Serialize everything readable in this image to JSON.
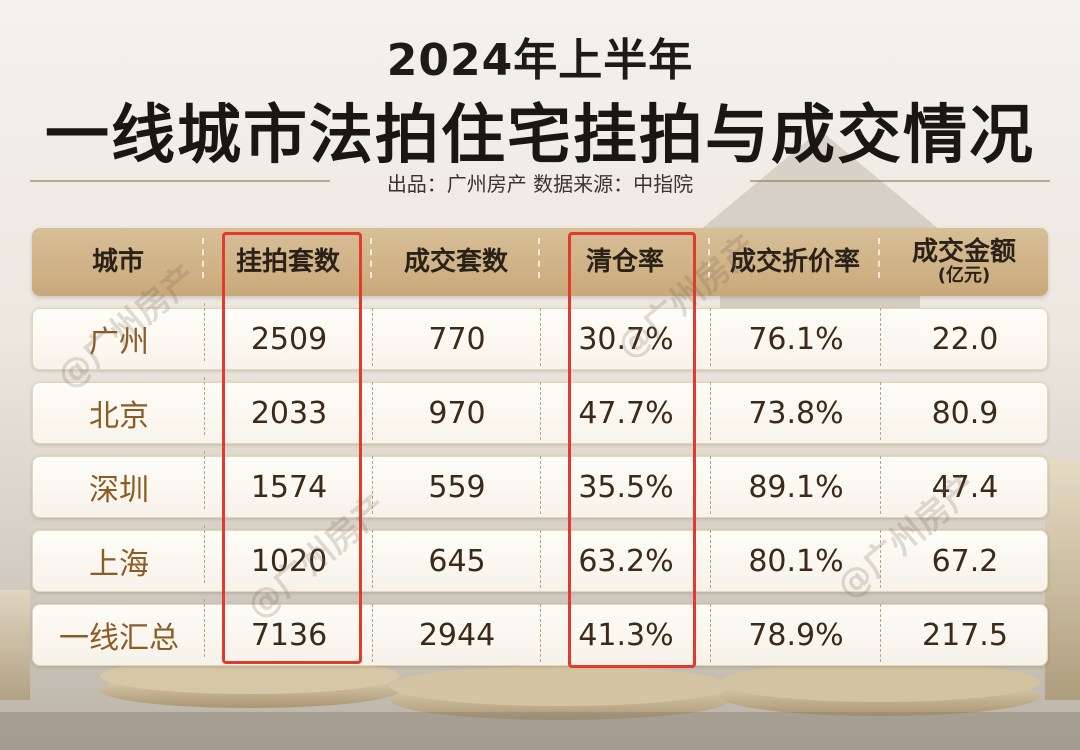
{
  "header": {
    "subtitle": "2024年上半年",
    "title": "一线城市法拍住宅挂拍与成交情况",
    "source": "出品：广州房产  数据来源：中指院"
  },
  "table": {
    "columns": [
      "城市",
      "挂拍套数",
      "成交套数",
      "清仓率",
      "成交折价率",
      "成交金额"
    ],
    "amount_unit": "(亿元)",
    "rows": [
      {
        "city": "广州",
        "listed": "2509",
        "sold": "770",
        "clearance": "30.7%",
        "discount": "76.1%",
        "amount": "22.0"
      },
      {
        "city": "北京",
        "listed": "2033",
        "sold": "970",
        "clearance": "47.7%",
        "discount": "73.8%",
        "amount": "80.9"
      },
      {
        "city": "深圳",
        "listed": "1574",
        "sold": "559",
        "clearance": "35.5%",
        "discount": "89.1%",
        "amount": "47.4"
      },
      {
        "city": "上海",
        "listed": "1020",
        "sold": "645",
        "clearance": "63.2%",
        "discount": "80.1%",
        "amount": "67.2"
      },
      {
        "city": "一线汇总",
        "listed": "7136",
        "sold": "2944",
        "clearance": "41.3%",
        "discount": "78.9%",
        "amount": "217.5"
      }
    ]
  },
  "watermark": "@广州房产",
  "colors": {
    "header_bg": "#d2b588",
    "city_text": "#8c5c24",
    "highlight": "#e23b2b",
    "title": "#1a1713"
  }
}
